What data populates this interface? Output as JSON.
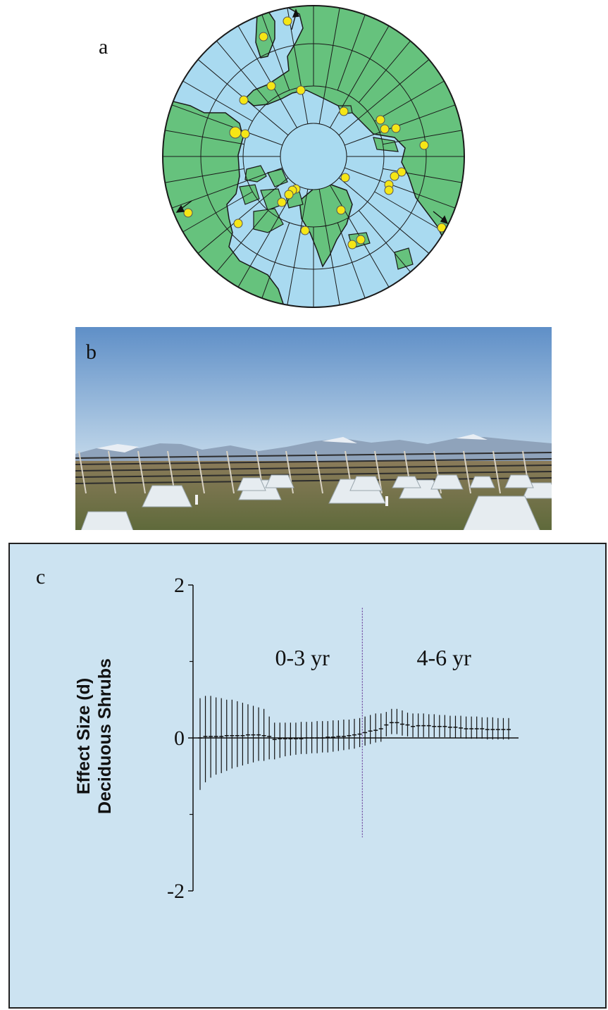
{
  "panels": {
    "a": {
      "label": "a"
    },
    "b": {
      "label": "b"
    },
    "c": {
      "label": "c"
    }
  },
  "colors": {
    "ocean": "#a9daf0",
    "land": "#66c27d",
    "site": "#f5e616",
    "panel_bg": "#cce3f1",
    "divider": "#6a3f9a"
  },
  "map": {
    "icon": "polar-projection-map"
  },
  "photo": {
    "icon": "tundra-warming-chambers-photo"
  },
  "chart_data": {
    "type": "scatter",
    "ylabel_line1": "Effect Size (d)",
    "ylabel_line2": "Deciduous Shrubs",
    "yticks": [
      "2",
      "0",
      "-2"
    ],
    "ylim": [
      -2,
      2
    ],
    "period_labels": [
      "0-3 yr",
      "4-6 yr"
    ],
    "divider_after_index": 30,
    "points": [
      {
        "m": 0.0,
        "lo": -0.68,
        "hi": 0.52
      },
      {
        "m": 0.02,
        "lo": -0.58,
        "hi": 0.55
      },
      {
        "m": 0.02,
        "lo": -0.52,
        "hi": 0.55
      },
      {
        "m": 0.02,
        "lo": -0.48,
        "hi": 0.53
      },
      {
        "m": 0.02,
        "lo": -0.46,
        "hi": 0.52
      },
      {
        "m": 0.03,
        "lo": -0.43,
        "hi": 0.5
      },
      {
        "m": 0.03,
        "lo": -0.4,
        "hi": 0.5
      },
      {
        "m": 0.03,
        "lo": -0.38,
        "hi": 0.48
      },
      {
        "m": 0.03,
        "lo": -0.36,
        "hi": 0.46
      },
      {
        "m": 0.04,
        "lo": -0.34,
        "hi": 0.44
      },
      {
        "m": 0.04,
        "lo": -0.32,
        "hi": 0.42
      },
      {
        "m": 0.04,
        "lo": -0.3,
        "hi": 0.4
      },
      {
        "m": 0.03,
        "lo": -0.3,
        "hi": 0.38
      },
      {
        "m": 0.02,
        "lo": -0.28,
        "hi": 0.28
      },
      {
        "m": -0.02,
        "lo": -0.28,
        "hi": 0.2
      },
      {
        "m": -0.01,
        "lo": -0.26,
        "hi": 0.2
      },
      {
        "m": -0.01,
        "lo": -0.24,
        "hi": 0.2
      },
      {
        "m": -0.01,
        "lo": -0.23,
        "hi": 0.2
      },
      {
        "m": -0.01,
        "lo": -0.22,
        "hi": 0.2
      },
      {
        "m": -0.01,
        "lo": -0.21,
        "hi": 0.21
      },
      {
        "m": 0.0,
        "lo": -0.21,
        "hi": 0.21
      },
      {
        "m": 0.0,
        "lo": -0.2,
        "hi": 0.21
      },
      {
        "m": 0.0,
        "lo": -0.2,
        "hi": 0.22
      },
      {
        "m": 0.0,
        "lo": -0.19,
        "hi": 0.22
      },
      {
        "m": 0.01,
        "lo": -0.19,
        "hi": 0.22
      },
      {
        "m": 0.01,
        "lo": -0.18,
        "hi": 0.23
      },
      {
        "m": 0.02,
        "lo": -0.17,
        "hi": 0.23
      },
      {
        "m": 0.02,
        "lo": -0.16,
        "hi": 0.24
      },
      {
        "m": 0.03,
        "lo": -0.15,
        "hi": 0.24
      },
      {
        "m": 0.04,
        "lo": -0.14,
        "hi": 0.25
      },
      {
        "m": 0.05,
        "lo": -0.12,
        "hi": 0.26
      },
      {
        "m": 0.07,
        "lo": -0.1,
        "hi": 0.28
      },
      {
        "m": 0.09,
        "lo": -0.08,
        "hi": 0.3
      },
      {
        "m": 0.1,
        "lo": -0.06,
        "hi": 0.32
      },
      {
        "m": 0.12,
        "lo": -0.05,
        "hi": 0.32
      },
      {
        "m": 0.17,
        "lo": 0.02,
        "hi": 0.34
      },
      {
        "m": 0.2,
        "lo": 0.05,
        "hi": 0.38
      },
      {
        "m": 0.2,
        "lo": 0.05,
        "hi": 0.38
      },
      {
        "m": 0.18,
        "lo": 0.03,
        "hi": 0.36
      },
      {
        "m": 0.17,
        "lo": 0.02,
        "hi": 0.33
      },
      {
        "m": 0.15,
        "lo": 0.01,
        "hi": 0.32
      },
      {
        "m": 0.16,
        "lo": 0.01,
        "hi": 0.32
      },
      {
        "m": 0.16,
        "lo": 0.01,
        "hi": 0.32
      },
      {
        "m": 0.16,
        "lo": 0.01,
        "hi": 0.31
      },
      {
        "m": 0.15,
        "lo": 0.01,
        "hi": 0.31
      },
      {
        "m": 0.15,
        "lo": 0.01,
        "hi": 0.3
      },
      {
        "m": 0.15,
        "lo": 0.01,
        "hi": 0.3
      },
      {
        "m": 0.14,
        "lo": 0.0,
        "hi": 0.29
      },
      {
        "m": 0.14,
        "lo": 0.0,
        "hi": 0.29
      },
      {
        "m": 0.13,
        "lo": 0.0,
        "hi": 0.29
      },
      {
        "m": 0.12,
        "lo": -0.01,
        "hi": 0.28
      },
      {
        "m": 0.12,
        "lo": -0.01,
        "hi": 0.28
      },
      {
        "m": 0.12,
        "lo": -0.01,
        "hi": 0.28
      },
      {
        "m": 0.12,
        "lo": -0.01,
        "hi": 0.27
      },
      {
        "m": 0.11,
        "lo": -0.02,
        "hi": 0.27
      },
      {
        "m": 0.11,
        "lo": -0.02,
        "hi": 0.27
      },
      {
        "m": 0.11,
        "lo": -0.02,
        "hi": 0.26
      },
      {
        "m": 0.11,
        "lo": -0.02,
        "hi": 0.26
      },
      {
        "m": 0.11,
        "lo": -0.02,
        "hi": 0.26
      }
    ]
  }
}
